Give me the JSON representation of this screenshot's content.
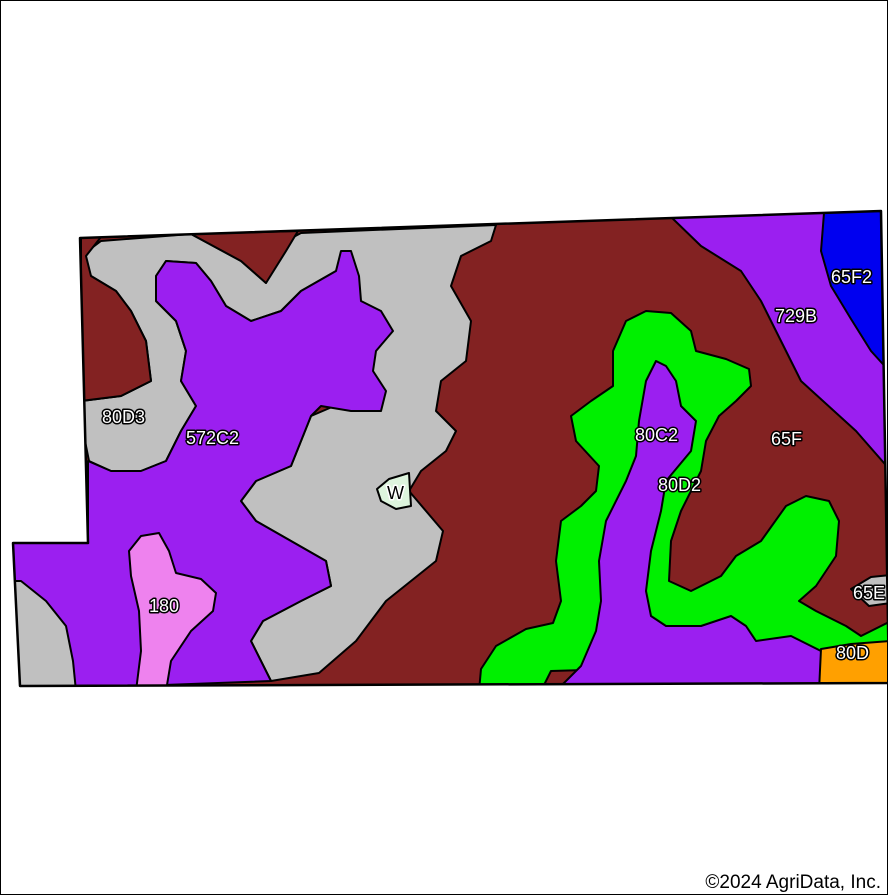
{
  "map": {
    "copyright": "©2024 AgriData, Inc.",
    "colors": {
      "brown": "#832222",
      "purple": "#9B1FF0",
      "gray": "#C0C0C0",
      "green": "#00F000",
      "blue": "#0000F0",
      "pink": "#EE82EE",
      "orange": "#FFA000",
      "pale_green": "#DDF4DD",
      "boundary": "#000000"
    },
    "labels": {
      "s80D3": "80D3",
      "s572C2": "572C2",
      "s180": "180",
      "sW": "W",
      "s80C2": "80C2",
      "s80D2": "80D2",
      "s65F": "65F",
      "s729B": "729B",
      "s65F2": "65F2",
      "s65E": "65E",
      "s80D": "80D"
    }
  }
}
